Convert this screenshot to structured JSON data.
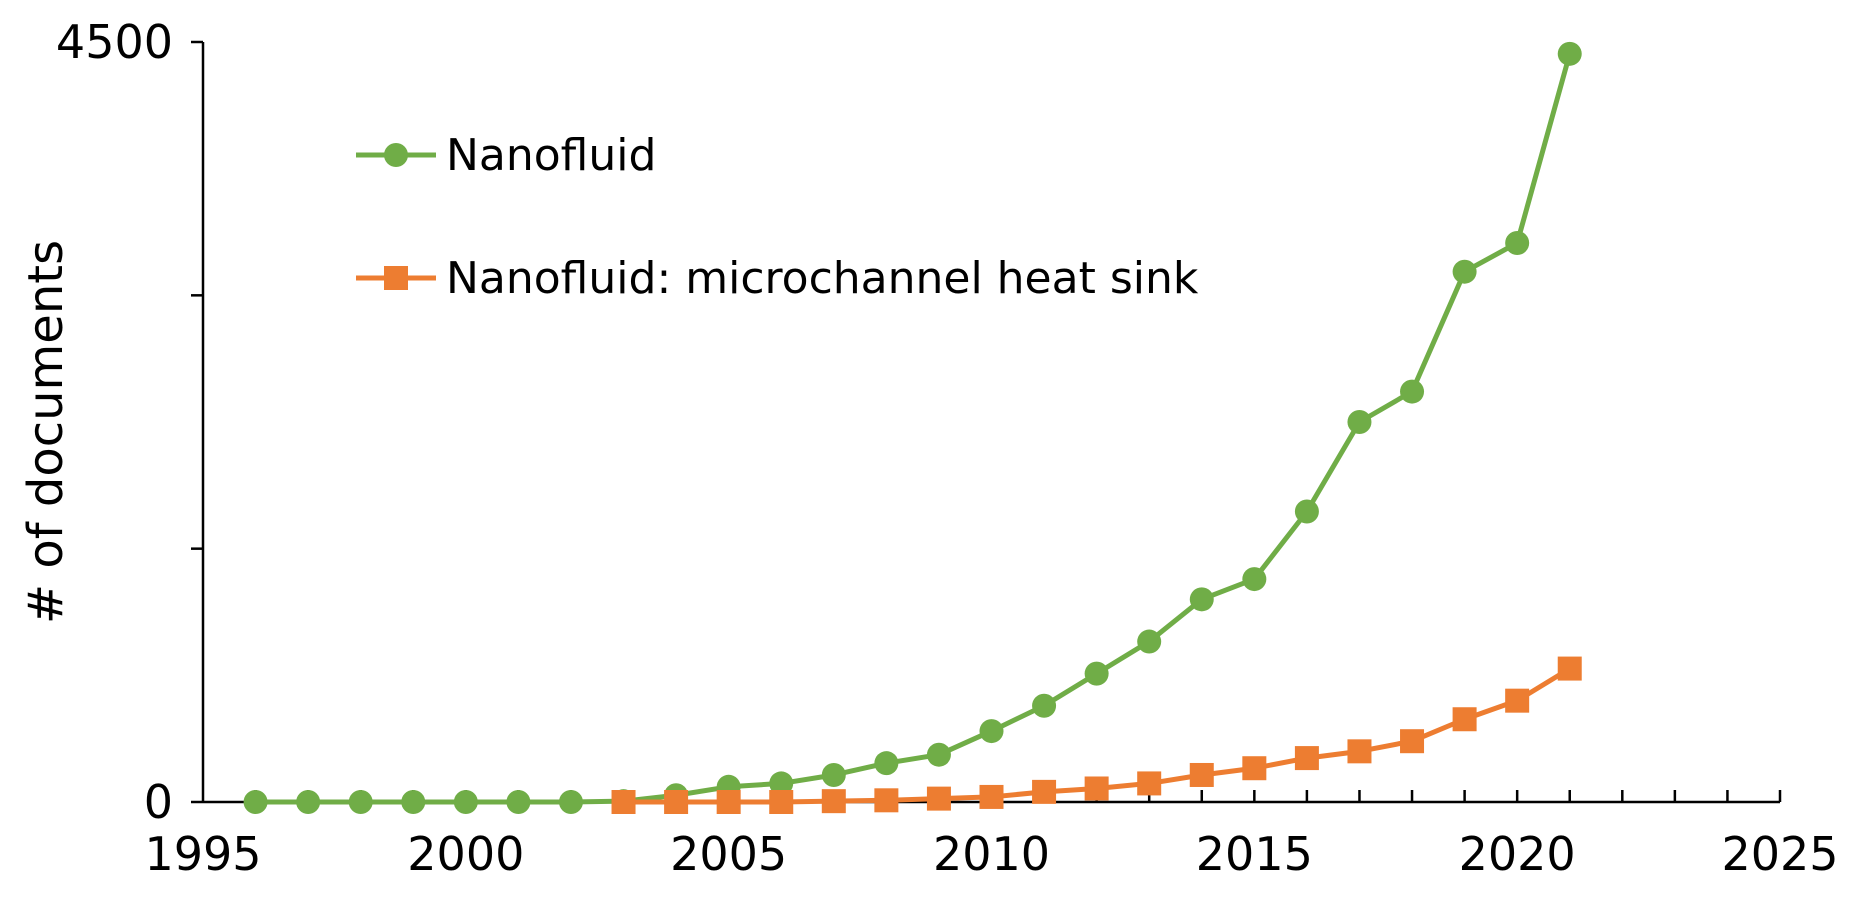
{
  "chart_data": {
    "type": "line",
    "title": "",
    "xlabel": "",
    "ylabel": "# of documents",
    "xlim": [
      1995,
      2025
    ],
    "ylim": [
      0,
      4500
    ],
    "x_ticks": [
      1995,
      2000,
      2005,
      2010,
      2015,
      2020,
      2025
    ],
    "x_tick_labels": [
      "1995",
      "2000",
      "2005",
      "2010",
      "2015",
      "2020",
      "2025"
    ],
    "y_tick_labels": [
      "0",
      "4500"
    ],
    "y_major_ticks": [
      0,
      1500,
      3000,
      4500
    ],
    "grid": false,
    "legend_position": "top-left",
    "series": [
      {
        "name": "Nanofluid",
        "color": "#70ad47",
        "marker": "circle",
        "x": [
          1996,
          1997,
          1998,
          1999,
          2000,
          2001,
          2002,
          2003,
          2004,
          2005,
          2006,
          2007,
          2008,
          2009,
          2010,
          2011,
          2012,
          2013,
          2014,
          2015,
          2016,
          2017,
          2018,
          2019,
          2020,
          2021
        ],
        "y": [
          0,
          0,
          0,
          0,
          0,
          0,
          0,
          5,
          40,
          90,
          110,
          160,
          230,
          280,
          420,
          570,
          760,
          950,
          1200,
          1320,
          1720,
          2250,
          2430,
          3140,
          3310,
          4430
        ]
      },
      {
        "name": "Nanofluid: microchannel heat sink",
        "color": "#ed7d31",
        "marker": "square",
        "x": [
          2003,
          2004,
          2005,
          2006,
          2007,
          2008,
          2009,
          2010,
          2011,
          2012,
          2013,
          2014,
          2015,
          2016,
          2017,
          2018,
          2019,
          2020,
          2021
        ],
        "y": [
          0,
          0,
          0,
          0,
          5,
          10,
          20,
          30,
          60,
          80,
          110,
          160,
          200,
          260,
          300,
          360,
          490,
          600,
          790
        ]
      }
    ]
  }
}
